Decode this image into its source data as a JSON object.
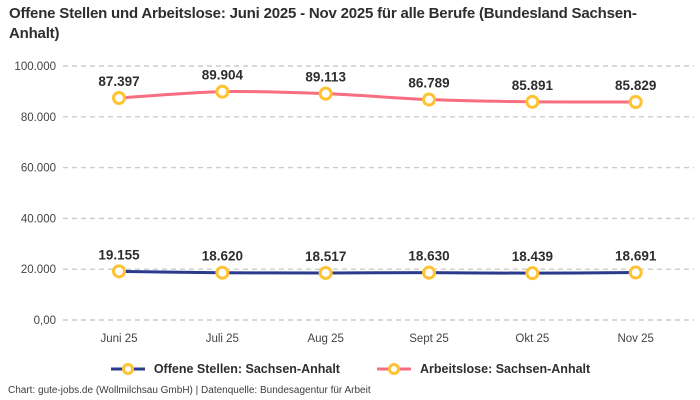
{
  "title": "Offene Stellen und Arbeitslose: Juni 2025 - Nov 2025 für alle Berufe (Bundesland Sachsen-Anhalt)",
  "footer": "Chart: gute-jobs.de (Wollmilchsau GmbH) | Datenquelle: Bundesagentur für Arbeit",
  "colors": {
    "offene_stellen_line": "#2a3a8c",
    "arbeitslose_line": "#f76e7f",
    "marker_stroke": "#ffc233",
    "marker_fill": "#ffffff",
    "gridline": "#cccccc",
    "text_dark": "#2e2e2e",
    "tick_text": "#444444"
  },
  "chart_data": {
    "type": "line",
    "categories": [
      "Juni 25",
      "Juli 25",
      "Aug 25",
      "Sept 25",
      "Okt 25",
      "Nov 25"
    ],
    "series": [
      {
        "name": "Offene Stellen: Sachsen-Anhalt",
        "values": [
          19155,
          18620,
          18517,
          18630,
          18439,
          18691
        ],
        "point_labels": [
          "19.155",
          "18.620",
          "18.517",
          "18.630",
          "18.439",
          "18.691"
        ],
        "color": "#2a3a8c"
      },
      {
        "name": "Arbeitslose: Sachsen-Anhalt",
        "values": [
          87397,
          89904,
          89113,
          86789,
          85891,
          85829
        ],
        "point_labels": [
          "87.397",
          "89.904",
          "89.113",
          "86.789",
          "85.891",
          "85.829"
        ],
        "color": "#f76e7f"
      }
    ],
    "ylim": [
      0,
      100000
    ],
    "ytick_values": [
      0,
      20000,
      40000,
      60000,
      80000,
      100000
    ],
    "ytick_labels": [
      "0,00",
      "20.000",
      "40.000",
      "60.000",
      "80.000",
      "100.000"
    ],
    "xlabel": "",
    "ylabel": "",
    "grid": "horizontal-dashed",
    "legend_position": "bottom",
    "marker": {
      "shape": "circle",
      "fill": "#ffffff",
      "stroke": "#ffc233"
    }
  }
}
